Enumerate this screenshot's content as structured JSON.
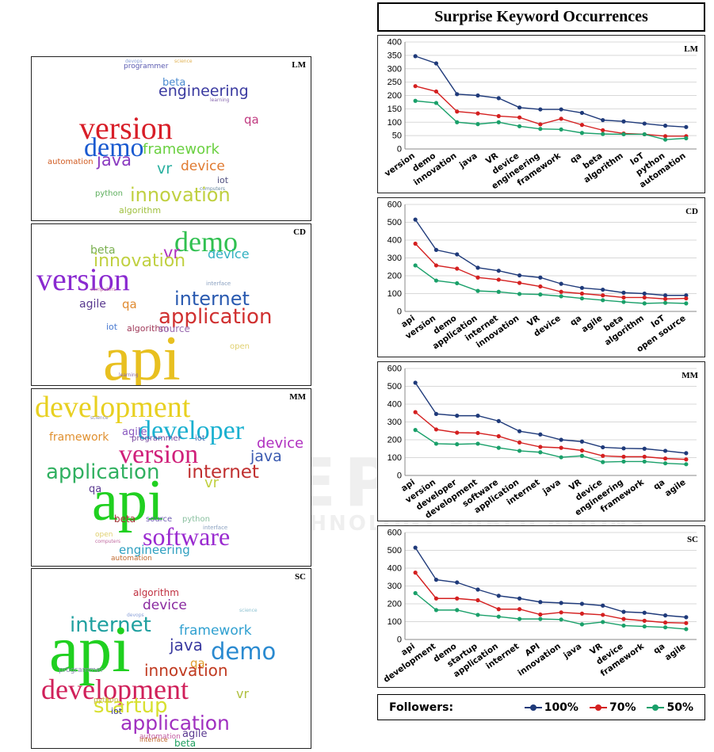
{
  "colors": {
    "s100": "#1f3a7a",
    "s70": "#d42020",
    "s50": "#1aa06a"
  },
  "title": "Surprise Keyword Occurrences",
  "watermark": {
    "line1": "SCITEPRESS",
    "line2": "SCIENCE AND TECHNOLOGY PUBLICATIONS"
  },
  "legend": {
    "label": "Followers:",
    "items": [
      "100%",
      "70%",
      "50%"
    ]
  },
  "wordclouds": [
    {
      "tag": "LM",
      "words": [
        {
          "text": "devops",
          "color": "#8aa0d8",
          "size": 6
        },
        {
          "text": "science",
          "color": "#e0b050",
          "size": 6
        },
        {
          "text": "programmer",
          "color": "#5a5ab0",
          "size": 9
        },
        {
          "text": "beta",
          "color": "#4a8ad0",
          "size": 13
        },
        {
          "text": "engineering",
          "color": "#3a3aa0",
          "size": 19
        },
        {
          "text": "qa",
          "color": "#c03a80",
          "size": 15
        },
        {
          "text": "learning",
          "color": "#8a6ab0",
          "size": 6
        },
        {
          "text": "version",
          "color": "#d81e28",
          "size": 40
        },
        {
          "text": "demo",
          "color": "#1a5ad0",
          "size": 34
        },
        {
          "text": "framework",
          "color": "#6ad040",
          "size": 18
        },
        {
          "text": "automation",
          "color": "#d05a20",
          "size": 10
        },
        {
          "text": "java",
          "color": "#8a3ac0",
          "size": 21
        },
        {
          "text": "vr",
          "color": "#2ab0a0",
          "size": 19
        },
        {
          "text": "device",
          "color": "#e07a30",
          "size": 17
        },
        {
          "text": "iot",
          "color": "#505080",
          "size": 11
        },
        {
          "text": "computers",
          "color": "#6a8aa0",
          "size": 6
        },
        {
          "text": "python",
          "color": "#60b060",
          "size": 10
        },
        {
          "text": "innovation",
          "color": "#c0d040",
          "size": 24
        },
        {
          "text": "algorithm",
          "color": "#a0c040",
          "size": 11
        }
      ]
    },
    {
      "tag": "CD",
      "words": [
        {
          "text": "demo",
          "color": "#30c050",
          "size": 36
        },
        {
          "text": "beta",
          "color": "#7ab050",
          "size": 14
        },
        {
          "text": "vr",
          "color": "#b030c0",
          "size": 21
        },
        {
          "text": "device",
          "color": "#30b0c0",
          "size": 16
        },
        {
          "text": "innovation",
          "color": "#c0d040",
          "size": 22
        },
        {
          "text": "version",
          "color": "#8a2ad0",
          "size": 40
        },
        {
          "text": "interface",
          "color": "#8aa0c0",
          "size": 7
        },
        {
          "text": "computers",
          "color": "#c06aa0",
          "size": 6
        },
        {
          "text": "internet",
          "color": "#2a5ab0",
          "size": 24
        },
        {
          "text": "agile",
          "color": "#5a3a90",
          "size": 14
        },
        {
          "text": "qa",
          "color": "#e08a30",
          "size": 15
        },
        {
          "text": "application",
          "color": "#d03030",
          "size": 26
        },
        {
          "text": "iot",
          "color": "#4a7ad0",
          "size": 11
        },
        {
          "text": "algorithm",
          "color": "#a03a5a",
          "size": 11
        },
        {
          "text": "source",
          "color": "#9a6ab0",
          "size": 12
        },
        {
          "text": "api",
          "color": "#e8c020",
          "size": 80
        },
        {
          "text": "open",
          "color": "#e0d070",
          "size": 10
        },
        {
          "text": "learning",
          "color": "#8a6ab0",
          "size": 6
        }
      ]
    },
    {
      "tag": "MM",
      "words": [
        {
          "text": "development",
          "color": "#e8d020",
          "size": 38
        },
        {
          "text": "developer",
          "color": "#1ab0d0",
          "size": 34
        },
        {
          "text": "science",
          "color": "#8a8ab0",
          "size": 6
        },
        {
          "text": "agile",
          "color": "#8a5ac0",
          "size": 13
        },
        {
          "text": "framework",
          "color": "#e09030",
          "size": 14
        },
        {
          "text": "programmer",
          "color": "#7a4aa0",
          "size": 10
        },
        {
          "text": "iot",
          "color": "#4a6ab0",
          "size": 10
        },
        {
          "text": "device",
          "color": "#b030c0",
          "size": 18
        },
        {
          "text": "version",
          "color": "#d0207a",
          "size": 34
        },
        {
          "text": "java",
          "color": "#3a5ab0",
          "size": 19
        },
        {
          "text": "application",
          "color": "#30b060",
          "size": 26
        },
        {
          "text": "internet",
          "color": "#c03030",
          "size": 23
        },
        {
          "text": "vr",
          "color": "#c0d040",
          "size": 18
        },
        {
          "text": "qa",
          "color": "#5a3a90",
          "size": 13
        },
        {
          "text": "api",
          "color": "#20d020",
          "size": 74
        },
        {
          "text": "beta",
          "color": "#a03030",
          "size": 12
        },
        {
          "text": "source",
          "color": "#6a5ab0",
          "size": 10
        },
        {
          "text": "python",
          "color": "#8ac0a0",
          "size": 10
        },
        {
          "text": "interface",
          "color": "#8aa0c0",
          "size": 7
        },
        {
          "text": "software",
          "color": "#9a2ad0",
          "size": 32
        },
        {
          "text": "open",
          "color": "#e0d070",
          "size": 9
        },
        {
          "text": "computers",
          "color": "#c06aa0",
          "size": 6
        },
        {
          "text": "engineering",
          "color": "#30a0c0",
          "size": 15
        },
        {
          "text": "automation",
          "color": "#c06a30",
          "size": 9
        }
      ]
    },
    {
      "tag": "SC",
      "words": [
        {
          "text": "algorithm",
          "color": "#c03040",
          "size": 12
        },
        {
          "text": "device",
          "color": "#8a2aa0",
          "size": 17
        },
        {
          "text": "devops",
          "color": "#8aa0d8",
          "size": 6
        },
        {
          "text": "science",
          "color": "#8ac0d0",
          "size": 6
        },
        {
          "text": "internet",
          "color": "#20a0a0",
          "size": 26
        },
        {
          "text": "framework",
          "color": "#30a0d0",
          "size": 17
        },
        {
          "text": "api",
          "color": "#20d020",
          "size": 84
        },
        {
          "text": "java",
          "color": "#3a3aa0",
          "size": 20
        },
        {
          "text": "demo",
          "color": "#2a8ad0",
          "size": 29
        },
        {
          "text": "qa",
          "color": "#e0a030",
          "size": 15
        },
        {
          "text": "programmer",
          "color": "#8a8ab0",
          "size": 9
        },
        {
          "text": "innovation",
          "color": "#c03a20",
          "size": 20
        },
        {
          "text": "development",
          "color": "#d0205a",
          "size": 36
        },
        {
          "text": "startup",
          "color": "#d8e030",
          "size": 26
        },
        {
          "text": "vr",
          "color": "#b0c040",
          "size": 16
        },
        {
          "text": "python",
          "color": "#c0b040",
          "size": 9
        },
        {
          "text": "iot",
          "color": "#3a3a90",
          "size": 11
        },
        {
          "text": "application",
          "color": "#a030c0",
          "size": 25
        },
        {
          "text": "automation",
          "color": "#c05aa0",
          "size": 9
        },
        {
          "text": "agile",
          "color": "#5a3a90",
          "size": 13
        },
        {
          "text": "interface",
          "color": "#c06a30",
          "size": 8
        },
        {
          "text": "beta",
          "color": "#20a060",
          "size": 12
        }
      ]
    }
  ],
  "chart_data": [
    {
      "type": "line",
      "tag": "LM",
      "categories": [
        "version",
        "demo",
        "innovation",
        "java",
        "VR",
        "device",
        "engineering",
        "framework",
        "qa",
        "beta",
        "algorithm",
        "IoT",
        "python",
        "automation"
      ],
      "ylim": [
        0,
        400
      ],
      "yticks": [
        0,
        50,
        100,
        150,
        200,
        250,
        300,
        350,
        400
      ],
      "series": [
        {
          "name": "100%",
          "values": [
            347,
            320,
            205,
            200,
            190,
            155,
            148,
            148,
            135,
            108,
            103,
            95,
            87,
            82
          ]
        },
        {
          "name": "70%",
          "values": [
            235,
            215,
            140,
            133,
            123,
            118,
            92,
            113,
            90,
            70,
            58,
            55,
            48,
            48
          ]
        },
        {
          "name": "50%",
          "values": [
            180,
            172,
            100,
            93,
            100,
            85,
            75,
            73,
            60,
            56,
            55,
            55,
            35,
            40
          ]
        }
      ]
    },
    {
      "type": "line",
      "tag": "CD",
      "categories": [
        "api",
        "version",
        "demo",
        "application",
        "internet",
        "innovation",
        "VR",
        "device",
        "qa",
        "agile",
        "beta",
        "algorithm",
        "IoT",
        "open source"
      ],
      "ylim": [
        0,
        600
      ],
      "yticks": [
        0,
        100,
        200,
        300,
        400,
        500,
        600
      ],
      "series": [
        {
          "name": "100%",
          "values": [
            515,
            345,
            320,
            245,
            228,
            202,
            190,
            155,
            132,
            122,
            105,
            100,
            90,
            90
          ]
        },
        {
          "name": "70%",
          "values": [
            380,
            258,
            240,
            190,
            178,
            160,
            140,
            110,
            100,
            90,
            78,
            78,
            70,
            73
          ]
        },
        {
          "name": "50%",
          "values": [
            258,
            173,
            158,
            115,
            110,
            98,
            95,
            85,
            73,
            63,
            53,
            45,
            48,
            45
          ]
        }
      ]
    },
    {
      "type": "line",
      "tag": "MM",
      "categories": [
        "api",
        "version",
        "developer",
        "development",
        "software",
        "application",
        "internet",
        "java",
        "VR",
        "device",
        "engineering",
        "framework",
        "qa",
        "agile"
      ],
      "ylim": [
        0,
        600
      ],
      "yticks": [
        0,
        100,
        200,
        300,
        400,
        500,
        600
      ],
      "series": [
        {
          "name": "100%",
          "values": [
            520,
            345,
            335,
            335,
            305,
            248,
            230,
            200,
            190,
            158,
            152,
            150,
            138,
            125
          ]
        },
        {
          "name": "70%",
          "values": [
            355,
            258,
            240,
            238,
            220,
            185,
            160,
            155,
            140,
            110,
            105,
            105,
            95,
            90
          ]
        },
        {
          "name": "50%",
          "values": [
            255,
            178,
            175,
            178,
            155,
            138,
            130,
            102,
            110,
            75,
            78,
            78,
            68,
            63
          ]
        }
      ]
    },
    {
      "type": "line",
      "tag": "SC",
      "categories": [
        "api",
        "development",
        "demo",
        "startup",
        "application",
        "internet",
        "API",
        "innovation",
        "java",
        "VR",
        "device",
        "framework",
        "qa",
        "agile"
      ],
      "ylim": [
        0,
        600
      ],
      "yticks": [
        0,
        100,
        200,
        300,
        400,
        500,
        600
      ],
      "series": [
        {
          "name": "100%",
          "values": [
            515,
            335,
            320,
            280,
            245,
            230,
            210,
            205,
            200,
            190,
            155,
            150,
            135,
            125
          ]
        },
        {
          "name": "70%",
          "values": [
            375,
            230,
            230,
            220,
            170,
            170,
            140,
            152,
            145,
            138,
            115,
            105,
            95,
            92
          ]
        },
        {
          "name": "50%",
          "values": [
            260,
            165,
            165,
            138,
            128,
            115,
            115,
            112,
            85,
            98,
            78,
            73,
            68,
            58
          ]
        }
      ]
    }
  ]
}
